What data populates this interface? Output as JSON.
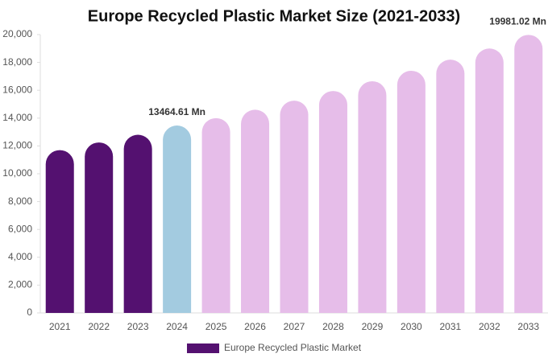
{
  "chart_data": {
    "type": "bar",
    "title": "Europe Recycled Plastic Market Size (2021-2033)",
    "categories": [
      "2021",
      "2022",
      "2023",
      "2024",
      "2025",
      "2026",
      "2027",
      "2028",
      "2029",
      "2030",
      "2031",
      "2032",
      "2033"
    ],
    "series": [
      {
        "name": "Europe Recycled Plastic Market",
        "color": "#541170",
        "values": [
          11700,
          12250,
          12800,
          13464.61,
          14000,
          14600,
          15250,
          15950,
          16650,
          17400,
          18200,
          19000,
          19981.02
        ],
        "value_labels": [
          null,
          null,
          null,
          "13464.61 Mn",
          null,
          null,
          null,
          null,
          null,
          null,
          null,
          null,
          "19981.02 Mn"
        ],
        "colors": [
          "#541170",
          "#541170",
          "#541170",
          "#a3cbe0",
          "#e6bde9",
          "#e6bde9",
          "#e6bde9",
          "#e6bde9",
          "#e6bde9",
          "#e6bde9",
          "#e6bde9",
          "#e6bde9",
          "#e6bde9"
        ]
      }
    ],
    "ylim": [
      0,
      20000
    ],
    "yticks": [
      0,
      {
        "value": 2000,
        "label": "2,000"
      },
      {
        "value": 4000,
        "label": "4,000"
      },
      {
        "value": 6000,
        "label": "6,000"
      },
      {
        "value": 8000,
        "label": "8,000"
      },
      {
        "value": 10000,
        "label": "10,000"
      },
      {
        "value": 12000,
        "label": "12,000"
      },
      {
        "value": 14000,
        "label": "14,000"
      },
      {
        "value": 16000,
        "label": "16,000"
      },
      {
        "value": 18000,
        "label": "18,000"
      },
      {
        "value": 20000,
        "label": "20,000"
      }
    ],
    "grid": false
  }
}
